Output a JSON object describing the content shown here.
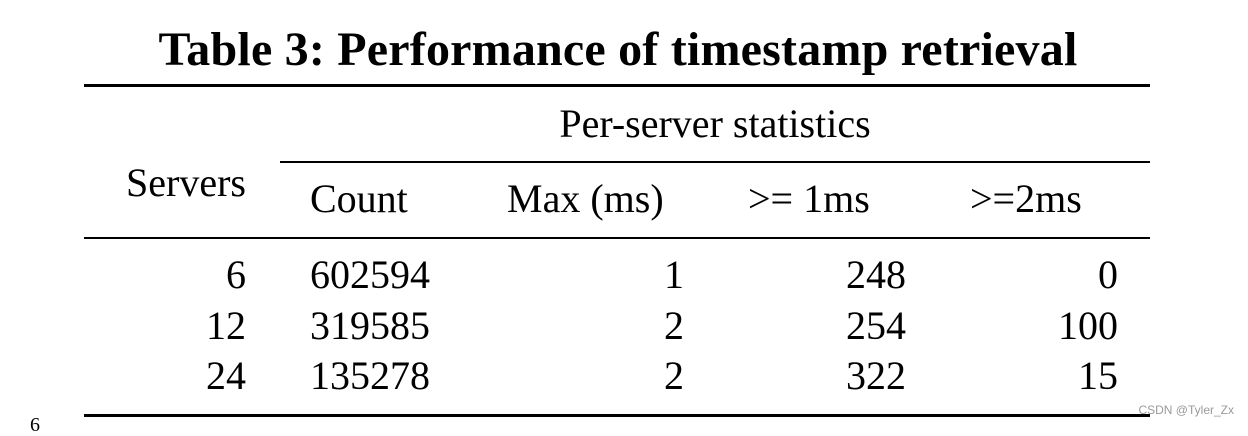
{
  "table": {
    "caption": "Table 3: Performance of timestamp retrieval",
    "spanning_header": "Per-server statistics",
    "row_header": "Servers",
    "columns": [
      "Count",
      "Max (ms)",
      ">= 1ms",
      ">=2ms"
    ],
    "rows": [
      {
        "servers": "6",
        "count": "602594",
        "max": "1",
        "ge1": "248",
        "ge2": "0"
      },
      {
        "servers": "12",
        "count": "319585",
        "max": "2",
        "ge1": "254",
        "ge2": "100"
      },
      {
        "servers": "24",
        "count": "135278",
        "max": "2",
        "ge1": "322",
        "ge2": "15"
      }
    ]
  },
  "watermark": "CSDN @Tyler_Zx",
  "stray_mark": "6"
}
